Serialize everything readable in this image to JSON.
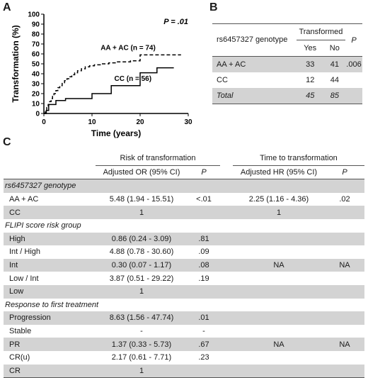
{
  "panels": {
    "a": "A",
    "b": "B",
    "c": "C"
  },
  "chart_data": {
    "type": "line",
    "xlabel": "Time (years)",
    "ylabel": "Transformation (%)",
    "xlim": [
      0,
      30
    ],
    "ylim": [
      0,
      100
    ],
    "xticks": [
      "0",
      "10",
      "20",
      "30"
    ],
    "yticks": [
      "0",
      "10",
      "20",
      "30",
      "40",
      "50",
      "60",
      "70",
      "80",
      "90",
      "100"
    ],
    "p_value": "P = .01",
    "step": true,
    "series": [
      {
        "name": "AA + AC (n = 74)",
        "style": "dashed",
        "x": [
          0,
          0.3,
          0.6,
          0.9,
          1.2,
          1.5,
          1.8,
          2.1,
          2.5,
          2.9,
          3.3,
          3.8,
          4.3,
          4.8,
          5.3,
          5.8,
          6.4,
          7.0,
          7.8,
          8.6,
          9.5,
          10.5,
          12.0,
          13.5,
          15.0,
          16.5,
          18.0,
          19.5,
          20.0,
          28.5
        ],
        "y": [
          0,
          3,
          6,
          9,
          12,
          15,
          18,
          20,
          23,
          26,
          28,
          31,
          33,
          35,
          37,
          39,
          41,
          43,
          45,
          47,
          48,
          49,
          50,
          51,
          52,
          52,
          53,
          53,
          59,
          59
        ]
      },
      {
        "name": "CC (n = 56)",
        "style": "solid",
        "x": [
          0,
          0.5,
          1.0,
          2.5,
          4.5,
          7.0,
          10.0,
          14.0,
          20.0,
          23.5,
          27.0
        ],
        "y": [
          0,
          3,
          9,
          13,
          15,
          15,
          20,
          28,
          41,
          46,
          46
        ]
      }
    ]
  },
  "tableB": {
    "header_snp": "rs6457327 genotype",
    "header_transformed": "Transformed",
    "header_yes": "Yes",
    "header_no": "No",
    "header_p": "P",
    "rows": [
      {
        "label": "AA + AC",
        "yes": "33",
        "no": "41",
        "p": ".006"
      },
      {
        "label": "CC",
        "yes": "12",
        "no": "44",
        "p": ""
      },
      {
        "label": "Total",
        "yes": "45",
        "no": "85",
        "p": ""
      }
    ]
  },
  "tableC": {
    "risk_header": "Risk of transformation",
    "time_header": "Time to transformation",
    "or_header": "Adjusted OR (95% CI)",
    "hr_header": "Adjusted HR (95% CI)",
    "p_header": "P",
    "sections": [
      {
        "title": "rs6457327 genotype",
        "rows": [
          {
            "label": "AA + AC",
            "or": "5.48 (1.94 - 15.51)",
            "p1": "<.01",
            "hr": "2.25 (1.16 - 4.36)",
            "p2": ".02"
          },
          {
            "label": "CC",
            "or": "1",
            "p1": "",
            "hr": "1",
            "p2": ""
          }
        ]
      },
      {
        "title": "FLIPI score risk group",
        "rows": [
          {
            "label": "High",
            "or": "0.86 (0.24 - 3.09)",
            "p1": ".81",
            "hr": "",
            "p2": ""
          },
          {
            "label": "Int / High",
            "or": "4.88 (0.78 - 30.60)",
            "p1": ".09",
            "hr": "",
            "p2": ""
          },
          {
            "label": "Int",
            "or": "0.30 (0.07 - 1.17)",
            "p1": ".08",
            "hr": "NA",
            "p2": "NA"
          },
          {
            "label": "Low / Int",
            "or": "3.87 (0.51 - 29.22)",
            "p1": ".19",
            "hr": "",
            "p2": ""
          },
          {
            "label": "Low",
            "or": "1",
            "p1": "",
            "hr": "",
            "p2": ""
          }
        ]
      },
      {
        "title": "Response to first treatment",
        "rows": [
          {
            "label": "Progression",
            "or": "8.63 (1.56 - 47.74)",
            "p1": ".01",
            "hr": "",
            "p2": ""
          },
          {
            "label": "Stable",
            "or": "-",
            "p1": "-",
            "hr": "",
            "p2": ""
          },
          {
            "label": "PR",
            "or": "1.37 (0.33 - 5.73)",
            "p1": ".67",
            "hr": "NA",
            "p2": "NA"
          },
          {
            "label": "CR(u)",
            "or": "2.17 (0.61 - 7.71)",
            "p1": ".23",
            "hr": "",
            "p2": ""
          },
          {
            "label": "CR",
            "or": "1",
            "p1": "",
            "hr": "",
            "p2": ""
          }
        ]
      }
    ]
  }
}
